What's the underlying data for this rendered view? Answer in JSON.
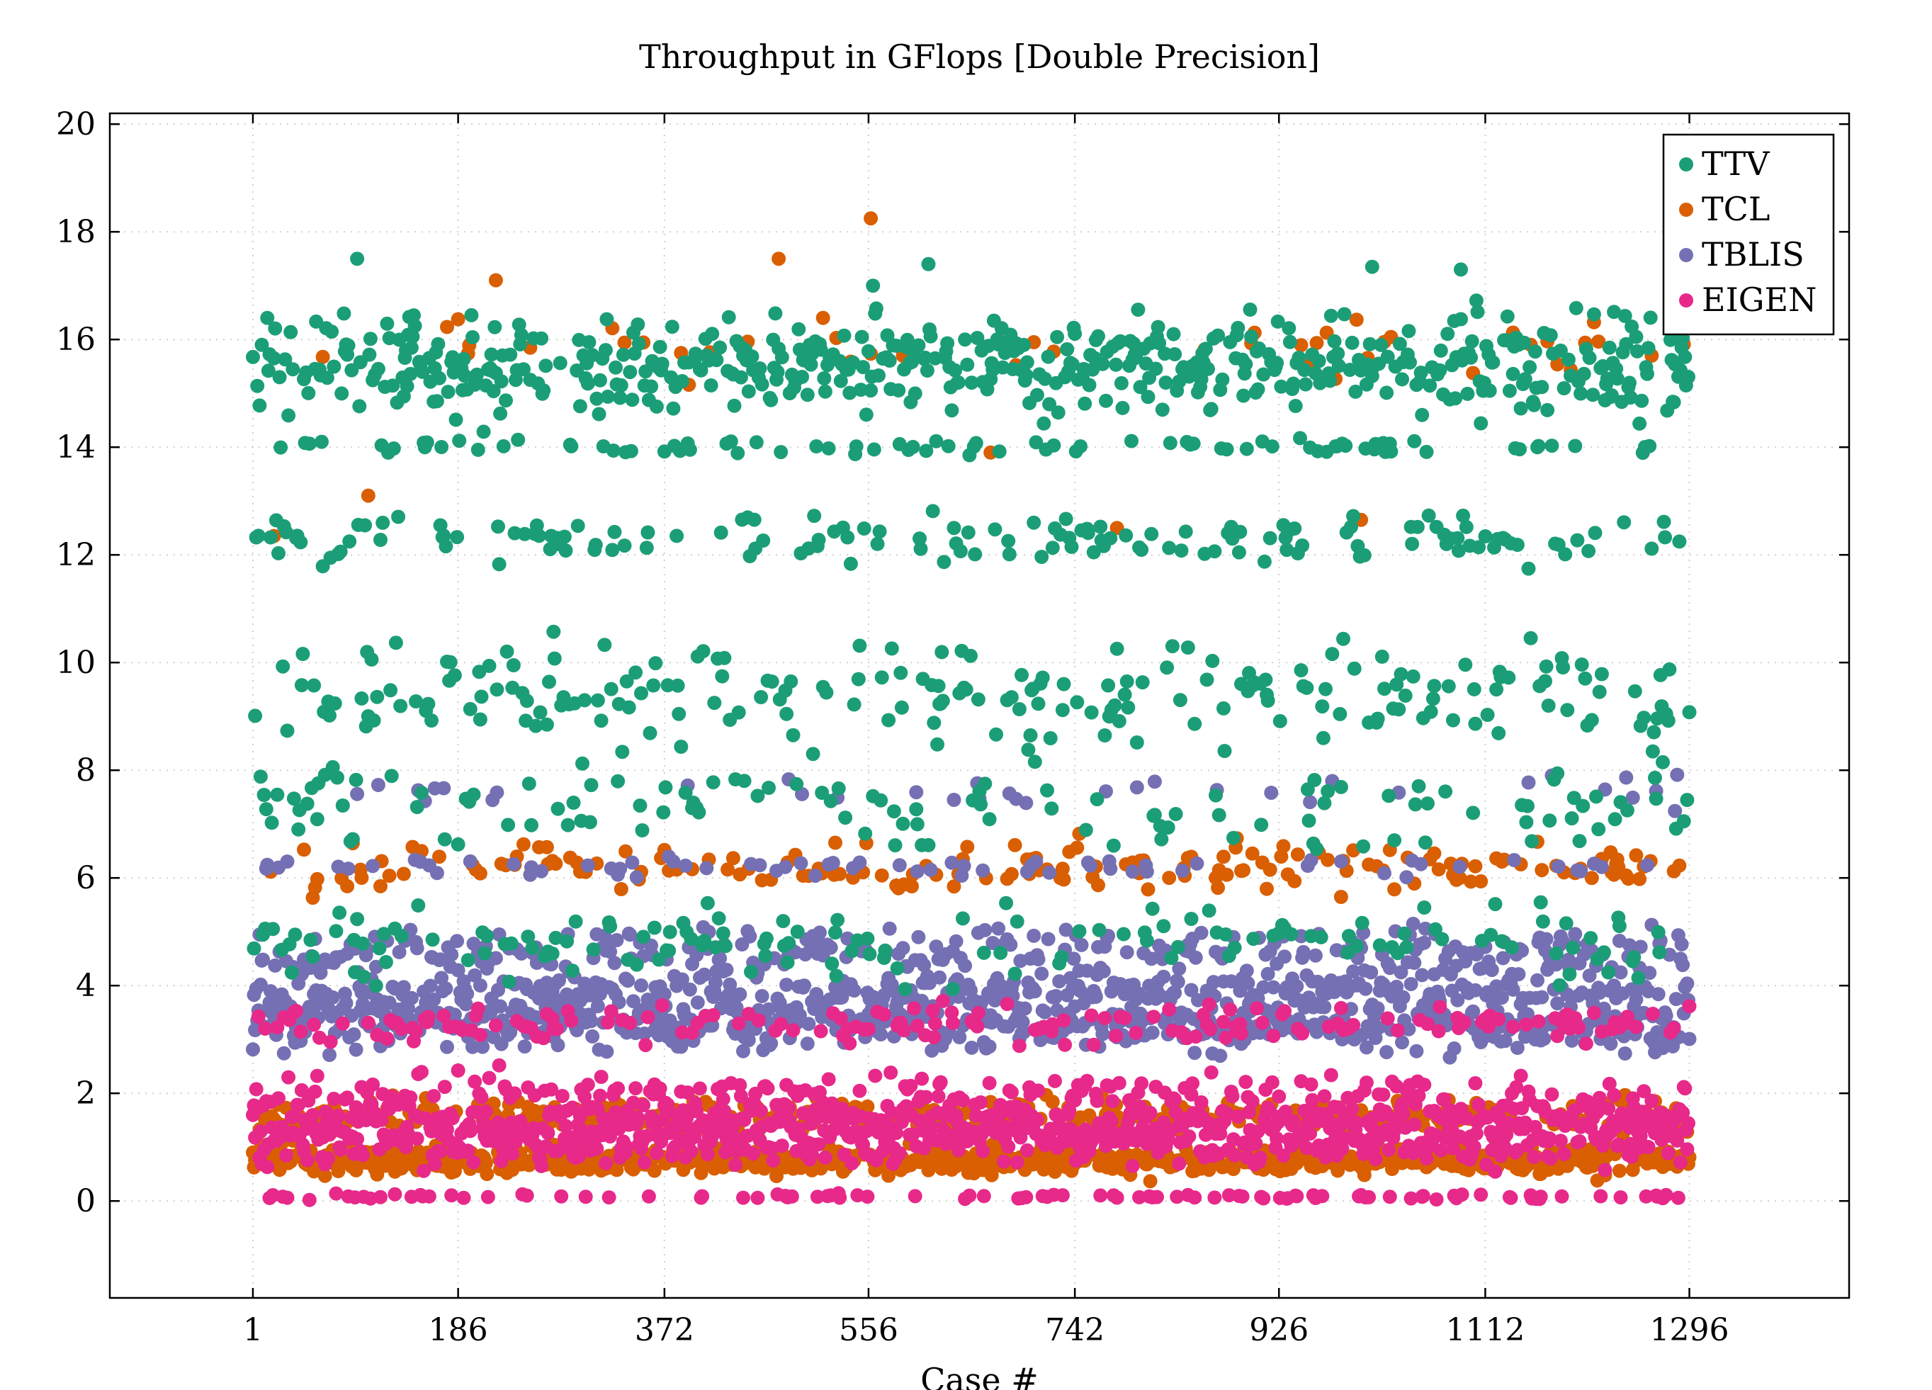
{
  "chart_data": {
    "type": "scatter",
    "title": "Throughput in GFlops [Double Precision]",
    "xlabel": "Case #",
    "ylabel": "",
    "xlim": [
      -128,
      1440
    ],
    "ylim": [
      -1.8,
      20.2
    ],
    "xticks": [
      1,
      186,
      372,
      556,
      742,
      926,
      1112,
      1296
    ],
    "xtick_labels": [
      "1",
      "186",
      "372",
      "556",
      "742",
      "926",
      "1112",
      "1296"
    ],
    "yticks": [
      0,
      2,
      4,
      6,
      8,
      10,
      12,
      14,
      16,
      18,
      20
    ],
    "ytick_labels": [
      "0",
      "2",
      "4",
      "6",
      "8",
      "10",
      "12",
      "14",
      "16",
      "18",
      "20"
    ],
    "grid": true,
    "legend_position": "top-right",
    "case_count": 1296,
    "series": [
      {
        "name": "TTV",
        "color": "#1b9e77",
        "bands": [
          {
            "center": 15.5,
            "spread": 0.9,
            "share": 0.42
          },
          {
            "center": 14.0,
            "spread": 0.15,
            "share": 0.07
          },
          {
            "center": 12.3,
            "spread": 0.4,
            "share": 0.12
          },
          {
            "center": 9.4,
            "spread": 0.9,
            "share": 0.18
          },
          {
            "center": 7.3,
            "spread": 0.7,
            "share": 0.09
          },
          {
            "center": 4.8,
            "spread": 0.7,
            "share": 0.12
          }
        ],
        "highlights": [
          {
            "x": 95,
            "y": 17.5
          },
          {
            "x": 560,
            "y": 17.0
          },
          {
            "x": 610,
            "y": 17.4
          },
          {
            "x": 1010,
            "y": 17.35
          },
          {
            "x": 1090,
            "y": 17.3
          }
        ]
      },
      {
        "name": "TCL",
        "color": "#d95f02",
        "bands": [
          {
            "center": 0.75,
            "spread": 0.25,
            "share": 0.55
          },
          {
            "center": 1.6,
            "spread": 0.3,
            "share": 0.25
          },
          {
            "center": 6.2,
            "spread": 0.45,
            "share": 0.16
          },
          {
            "center": 15.8,
            "spread": 0.6,
            "share": 0.04
          }
        ],
        "highlights": [
          {
            "x": 558,
            "y": 18.25
          },
          {
            "x": 475,
            "y": 17.5
          },
          {
            "x": 220,
            "y": 17.1
          },
          {
            "x": 20,
            "y": 12.35
          },
          {
            "x": 105,
            "y": 13.1
          },
          {
            "x": 1000,
            "y": 12.65
          },
          {
            "x": 666,
            "y": 13.9
          },
          {
            "x": 780,
            "y": 12.5
          }
        ]
      },
      {
        "name": "TBLIS",
        "color": "#7570b3",
        "bands": [
          {
            "center": 3.3,
            "spread": 0.5,
            "share": 0.45
          },
          {
            "center": 3.9,
            "spread": 0.3,
            "share": 0.25
          },
          {
            "center": 4.6,
            "spread": 0.45,
            "share": 0.22
          },
          {
            "center": 6.2,
            "spread": 0.2,
            "share": 0.05
          },
          {
            "center": 7.6,
            "spread": 0.3,
            "share": 0.03
          }
        ],
        "highlights": []
      },
      {
        "name": "EIGEN",
        "color": "#e7298a",
        "bands": [
          {
            "center": 1.3,
            "spread": 0.6,
            "share": 0.62
          },
          {
            "center": 2.0,
            "spread": 0.4,
            "share": 0.14
          },
          {
            "center": 3.3,
            "spread": 0.35,
            "share": 0.16
          },
          {
            "center": 0.08,
            "spread": 0.05,
            "share": 0.08
          }
        ],
        "highlights": []
      }
    ]
  }
}
